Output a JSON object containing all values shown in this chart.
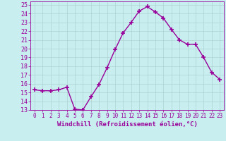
{
  "x": [
    0,
    1,
    2,
    3,
    4,
    5,
    6,
    7,
    8,
    9,
    10,
    11,
    12,
    13,
    14,
    15,
    16,
    17,
    18,
    19,
    20,
    21,
    22,
    23
  ],
  "y": [
    15.3,
    15.2,
    15.2,
    15.3,
    15.6,
    13.1,
    13.0,
    14.5,
    15.9,
    17.8,
    19.9,
    21.8,
    23.0,
    24.3,
    24.8,
    24.2,
    23.5,
    22.2,
    21.0,
    20.5,
    20.5,
    19.0,
    17.3,
    16.5
  ],
  "line_color": "#990099",
  "marker": "+",
  "marker_size": 4,
  "marker_linewidth": 1.2,
  "background_color": "#c8eef0",
  "grid_color": "#aacccc",
  "ylabel_ticks": [
    13,
    14,
    15,
    16,
    17,
    18,
    19,
    20,
    21,
    22,
    23,
    24,
    25
  ],
  "ylim": [
    13,
    25.4
  ],
  "xlim": [
    -0.5,
    23.5
  ],
  "xlabel": "Windchill (Refroidissement éolien,°C)",
  "xlabel_color": "#990099",
  "tick_color": "#990099",
  "tick_label_color": "#990099",
  "axis_label_fontsize": 6.5,
  "tick_fontsize": 6,
  "line_width": 1.0
}
